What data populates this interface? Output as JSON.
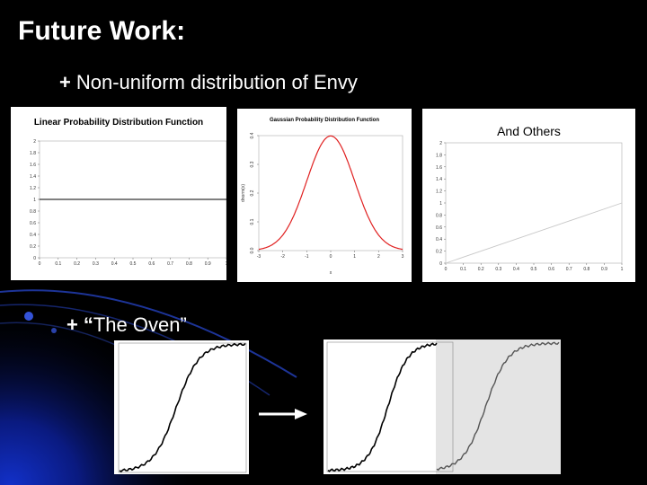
{
  "slide": {
    "title": "Future Work:",
    "bullets": [
      {
        "marker": "+",
        "text": "Non-uniform distribution of Envy"
      },
      {
        "marker": "+",
        "quote": "“",
        "text": "The Oven”"
      }
    ]
  },
  "chart_data": [
    {
      "type": "line",
      "title": "Linear Probability Distribution Function",
      "x_ticks": [
        "0",
        "0.1",
        "0.2",
        "0.3",
        "0.4",
        "0.5",
        "0.6",
        "0.7",
        "0.8",
        "0.9",
        "1"
      ],
      "y_ticks": [
        "0",
        "0.2",
        "0.4",
        "0.6",
        "0.8",
        "1",
        "1.2",
        "1.4",
        "1.6",
        "1.8",
        "2"
      ],
      "xlim": [
        0,
        1
      ],
      "ylim": [
        0,
        2
      ],
      "series": [
        {
          "x": [
            0,
            1
          ],
          "y": [
            1,
            1
          ],
          "color": "#000000"
        }
      ]
    },
    {
      "type": "line",
      "title": "Gaussian Probability Distribution Function",
      "xlabel": "x",
      "ylabel": "dnorm(x)",
      "x_ticks": [
        "-3",
        "-2",
        "-1",
        "0",
        "1",
        "2",
        "3"
      ],
      "y_ticks": [
        "0.0",
        "0.1",
        "0.2",
        "0.3",
        "0.4"
      ],
      "xlim": [
        -3,
        3
      ],
      "ylim": [
        0,
        0.4
      ],
      "series": [
        {
          "function": "normal_pdf",
          "mean": 0,
          "sd": 1,
          "color": "#e02020"
        }
      ]
    },
    {
      "type": "line",
      "title": "And Others",
      "x_ticks": [
        "0",
        "0.1",
        "0.2",
        "0.3",
        "0.4",
        "0.5",
        "0.6",
        "0.7",
        "0.8",
        "0.9",
        "1"
      ],
      "y_ticks": [
        "0",
        "0.2",
        "0.4",
        "0.6",
        "0.8",
        "1",
        "1.2",
        "1.4",
        "1.6",
        "1.8",
        "2"
      ],
      "xlim": [
        0,
        1
      ],
      "ylim": [
        0,
        2
      ],
      "series": [
        {
          "x": [
            0,
            1
          ],
          "y": [
            0,
            1
          ],
          "color": "#c8c8c8"
        }
      ]
    }
  ],
  "colors": {
    "background": "#000000",
    "text": "#ffffff",
    "accent": "#1a3fd0"
  }
}
